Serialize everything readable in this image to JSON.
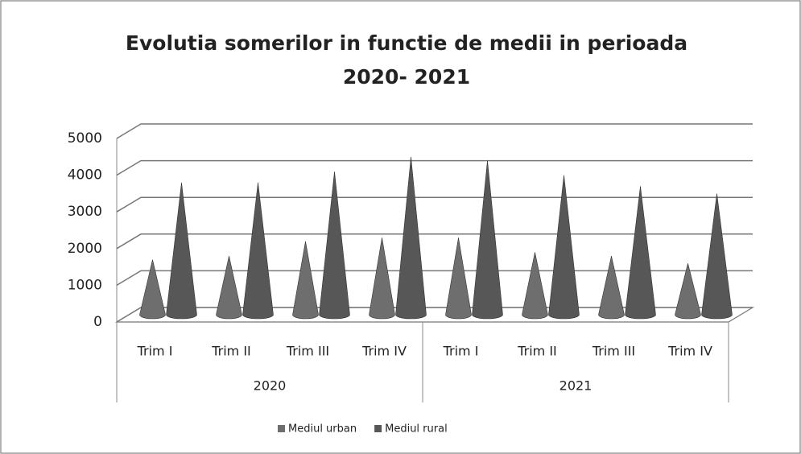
{
  "chart_data": {
    "type": "cone3d",
    "title": [
      "Evolutia somerilor in functie de medii in perioada",
      "2020- 2021"
    ],
    "categories": [
      "Trim I",
      "Trim II",
      "Trim III",
      "Trim IV",
      "Trim I",
      "Trim II",
      "Trim III",
      "Trim IV"
    ],
    "groups": [
      "2020",
      "2021"
    ],
    "series": [
      {
        "name": "Mediul urban",
        "color": "#6e6e6e",
        "values": [
          1500,
          1600,
          2000,
          2100,
          2100,
          1700,
          1600,
          1400
        ]
      },
      {
        "name": "Mediul rural",
        "color": "#575757",
        "values": [
          3600,
          3600,
          3900,
          4300,
          4200,
          3800,
          3500,
          3300
        ]
      }
    ],
    "ylim": [
      0,
      5000
    ],
    "yticks": [
      0,
      1000,
      2000,
      3000,
      4000,
      5000
    ],
    "grid": true,
    "legend": "bottom"
  }
}
